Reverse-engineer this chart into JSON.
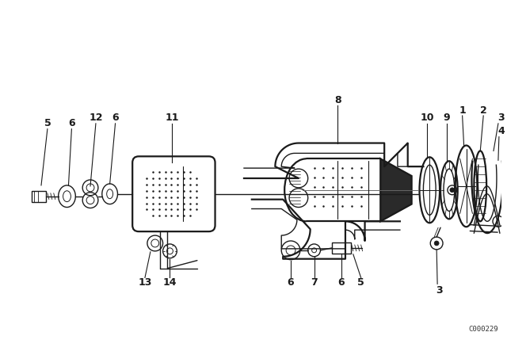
{
  "bg_color": "#ffffff",
  "line_color": "#1a1a1a",
  "fig_width": 6.4,
  "fig_height": 4.48,
  "dpi": 100,
  "watermark": "C000229"
}
